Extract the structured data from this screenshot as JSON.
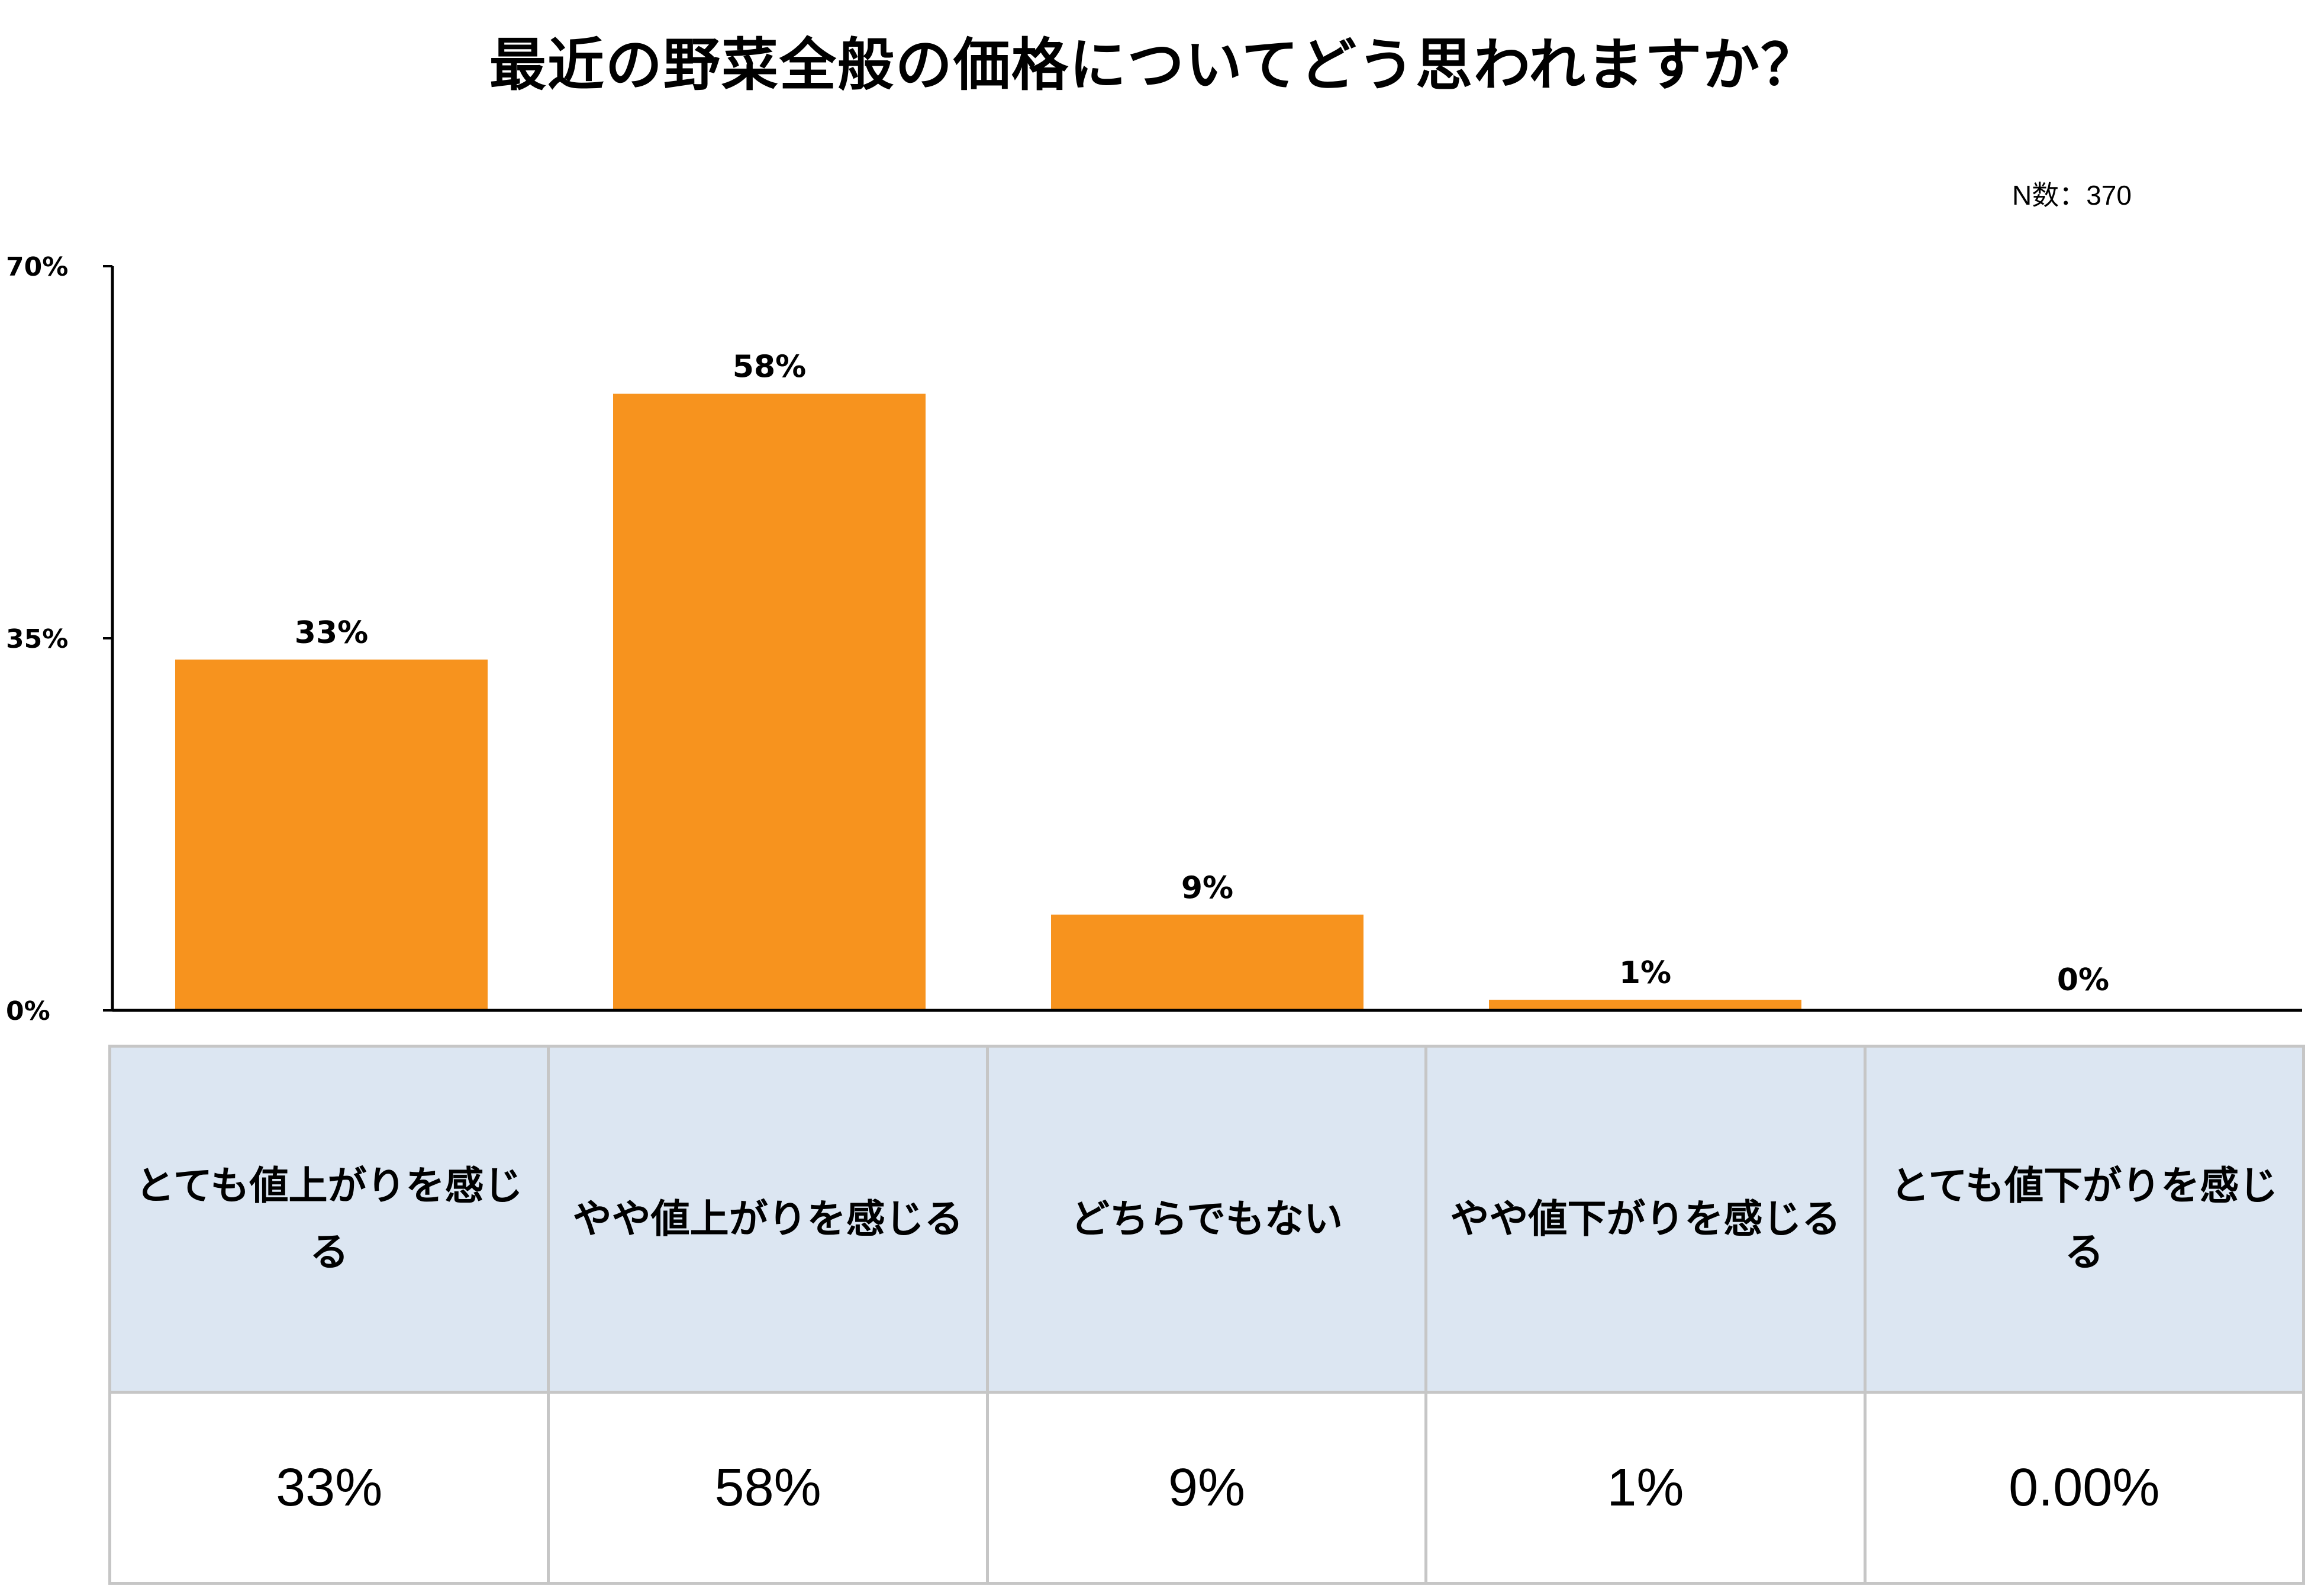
{
  "title": "最近の野菜全般の価格についてどう思われますか？",
  "n_label": "N数：370",
  "colors": {
    "bar": "#f7931e",
    "axis": "#000000",
    "table_header_bg": "#dce6f2",
    "table_border": "#c6c6c6"
  },
  "chart_data": {
    "type": "bar",
    "title": "最近の野菜全般の価格についてどう思われますか？",
    "categories": [
      "とても値上がりを感じる",
      "やや値上がりを感じる",
      "どちらでもない",
      "やや値下がりを感じる",
      "とても値下がりを感じる"
    ],
    "values": [
      33,
      58,
      9,
      1,
      0
    ],
    "data_labels": [
      "33%",
      "58%",
      "9%",
      "1%",
      "0%"
    ],
    "ylim": [
      0,
      70
    ],
    "yticks": [
      0,
      35,
      70
    ],
    "ytick_labels": [
      "0%",
      "35%",
      "70%"
    ],
    "grid": false,
    "legend": "none"
  },
  "table": {
    "headers": [
      "とても値上がりを感じる",
      "やや値上がりを感じる",
      "どちらでもない",
      "やや値下がりを感じる",
      "とても値下がりを感じる"
    ],
    "values": [
      "33%",
      "58%",
      "9%",
      "1%",
      "0.00%"
    ]
  }
}
